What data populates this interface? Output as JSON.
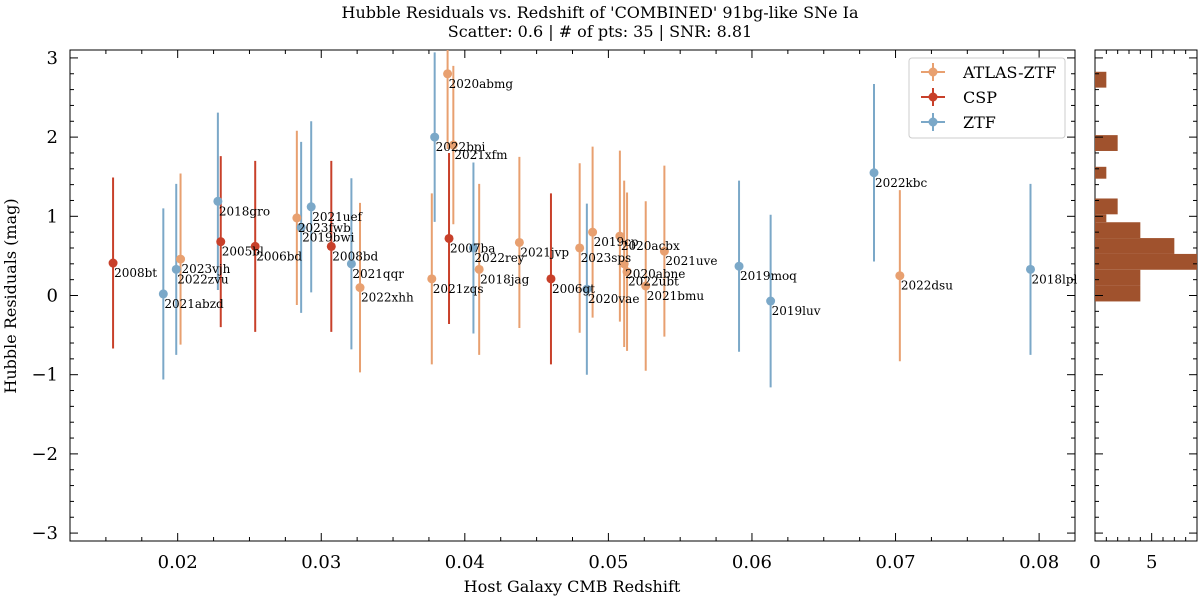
{
  "chart_data": [
    {
      "type": "scatter",
      "title": "Hubble Residuals vs. Redshift of 'COMBINED' 91bg-like SNe Ia",
      "subtitle": "Scatter: 0.6 | # of pts: 35 | SNR: 8.81",
      "xlabel": "Host Galaxy CMB Redshift",
      "ylabel": "Hubble Residuals (mag)",
      "xlim": [
        0.0125,
        0.0825
      ],
      "ylim": [
        -3.1,
        3.1
      ],
      "xticks": [
        "0.02",
        "0.03",
        "0.04",
        "0.05",
        "0.06",
        "0.07",
        "0.08"
      ],
      "yticks": [
        "−3",
        "−2",
        "−1",
        "0",
        "1",
        "2",
        "3"
      ],
      "legend_position": "top-right",
      "series": [
        {
          "name": "ATLAS-ZTF",
          "color": "#E8A070",
          "points": [
            {
              "label": "2023vjh",
              "x": 0.0202,
              "y": 0.46,
              "err": 1.08
            },
            {
              "label": "2023fwb",
              "x": 0.0283,
              "y": 0.98,
              "err": 1.1
            },
            {
              "label": "2022xhh",
              "x": 0.0327,
              "y": 0.1,
              "err": 1.07
            },
            {
              "label": "2021zqs",
              "x": 0.0377,
              "y": 0.21,
              "err": 1.08
            },
            {
              "label": "2020abmg",
              "x": 0.0388,
              "y": 2.8,
              "err": 0.95
            },
            {
              "label": "2021xfm",
              "x": 0.0392,
              "y": 1.9,
              "err": 1.0
            },
            {
              "label": "2018jag",
              "x": 0.041,
              "y": 0.33,
              "err": 1.08
            },
            {
              "label": "2021jvp",
              "x": 0.0438,
              "y": 0.67,
              "err": 1.08
            },
            {
              "label": "2023sps",
              "x": 0.048,
              "y": 0.6,
              "err": 1.07
            },
            {
              "label": "2019cp",
              "x": 0.0489,
              "y": 0.8,
              "err": 1.08
            },
            {
              "label": "2020acbx",
              "x": 0.0508,
              "y": 0.75,
              "err": 1.08
            },
            {
              "label": "2020abne",
              "x": 0.0511,
              "y": 0.4,
              "err": 1.05
            },
            {
              "label": "2022ubt",
              "x": 0.0513,
              "y": 0.3,
              "err": 1.0
            },
            {
              "label": "2021bmu",
              "x": 0.0526,
              "y": 0.12,
              "err": 1.07
            },
            {
              "label": "2021uve",
              "x": 0.0539,
              "y": 0.56,
              "err": 1.08
            },
            {
              "label": "2022dsu",
              "x": 0.0703,
              "y": 0.25,
              "err": 1.08
            }
          ]
        },
        {
          "name": "CSP",
          "color": "#C8402A",
          "points": [
            {
              "label": "2008bt",
              "x": 0.0155,
              "y": 0.41,
              "err": 1.08
            },
            {
              "label": "2005bl",
              "x": 0.023,
              "y": 0.68,
              "err": 1.08
            },
            {
              "label": "2006bd",
              "x": 0.0254,
              "y": 0.62,
              "err": 1.08
            },
            {
              "label": "2008bd",
              "x": 0.0307,
              "y": 0.62,
              "err": 1.08
            },
            {
              "label": "2007ba",
              "x": 0.0389,
              "y": 0.72,
              "err": 1.08
            },
            {
              "label": "2006gt",
              "x": 0.046,
              "y": 0.21,
              "err": 1.08
            }
          ]
        },
        {
          "name": "ZTF",
          "color": "#7BA8C8",
          "points": [
            {
              "label": "2021abzd",
              "x": 0.019,
              "y": 0.02,
              "err": 1.08
            },
            {
              "label": "2022zvu",
              "x": 0.0199,
              "y": 0.33,
              "err": 1.08
            },
            {
              "label": "2018gro",
              "x": 0.0228,
              "y": 1.19,
              "err": 1.12
            },
            {
              "label": "2019bwi",
              "x": 0.0286,
              "y": 0.86,
              "err": 1.08
            },
            {
              "label": "2021uef",
              "x": 0.0293,
              "y": 1.12,
              "err": 1.08
            },
            {
              "label": "2021qqr",
              "x": 0.0321,
              "y": 0.4,
              "err": 1.08
            },
            {
              "label": "2022bpi",
              "x": 0.0379,
              "y": 2.0,
              "err": 1.07
            },
            {
              "label": "2022rey",
              "x": 0.0406,
              "y": 0.6,
              "err": 1.08
            },
            {
              "label": "2020vae",
              "x": 0.0485,
              "y": 0.08,
              "err": 1.08
            },
            {
              "label": "2019moq",
              "x": 0.0591,
              "y": 0.37,
              "err": 1.08
            },
            {
              "label": "2019luv",
              "x": 0.0613,
              "y": -0.07,
              "err": 1.09
            },
            {
              "label": "2022kbc",
              "x": 0.0685,
              "y": 1.55,
              "err": 1.12
            },
            {
              "label": "2018lpl",
              "x": 0.0794,
              "y": 0.33,
              "err": 1.08
            }
          ]
        }
      ]
    },
    {
      "type": "bar",
      "orientation": "horizontal",
      "color": "#A0522D",
      "xticks": [
        "0",
        "5"
      ],
      "xlim": [
        0,
        9
      ],
      "bins": [
        {
          "from": -0.075,
          "to": 0.125,
          "count": 4
        },
        {
          "from": 0.125,
          "to": 0.325,
          "count": 4
        },
        {
          "from": 0.325,
          "to": 0.525,
          "count": 9
        },
        {
          "from": 0.525,
          "to": 0.725,
          "count": 7
        },
        {
          "from": 0.725,
          "to": 0.925,
          "count": 4
        },
        {
          "from": 0.925,
          "to": 1.025,
          "count": 1
        },
        {
          "from": 1.025,
          "to": 1.225,
          "count": 2
        },
        {
          "from": 1.475,
          "to": 1.625,
          "count": 1
        },
        {
          "from": 1.825,
          "to": 2.025,
          "count": 2
        },
        {
          "from": 2.625,
          "to": 2.825,
          "count": 1
        }
      ]
    }
  ]
}
